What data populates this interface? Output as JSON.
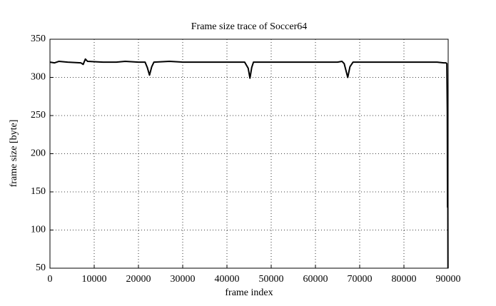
{
  "chart_data": {
    "type": "line",
    "title": "Frame size trace of Soccer64",
    "x_label": "frame index",
    "y_label": "frame size [byte]",
    "x": [
      0,
      1000,
      2000,
      4000,
      7000,
      7500,
      8000,
      8500,
      12000,
      15000,
      17000,
      20000,
      21500,
      22000,
      22500,
      23000,
      23500,
      27000,
      30000,
      35000,
      40000,
      44000,
      44800,
      45200,
      45600,
      46000,
      50000,
      55000,
      60000,
      65000,
      66000,
      66500,
      67300,
      67800,
      68500,
      75000,
      80000,
      85000,
      87500,
      89000,
      89500,
      89700,
      89800,
      89850,
      89900,
      89950
    ],
    "series": [
      {
        "name": "Soccer64",
        "color": "#000000",
        "values": [
          320,
          319,
          321,
          320,
          319,
          317,
          324,
          321,
          320,
          320,
          321,
          320,
          320,
          313,
          303,
          314,
          320,
          321,
          320,
          320,
          320,
          320,
          312,
          299,
          313,
          320,
          320,
          320,
          320,
          320,
          321,
          318,
          300,
          314,
          320,
          320,
          320,
          320,
          320,
          319,
          319,
          318,
          255,
          130,
          210,
          50
        ]
      }
    ],
    "xlim": [
      0,
      90000
    ],
    "xticks": [
      0,
      10000,
      20000,
      30000,
      40000,
      50000,
      60000,
      70000,
      80000,
      90000
    ],
    "ylim": [
      50,
      350
    ],
    "yticks": [
      50,
      100,
      150,
      200,
      250,
      300,
      350
    ],
    "grid": true
  }
}
